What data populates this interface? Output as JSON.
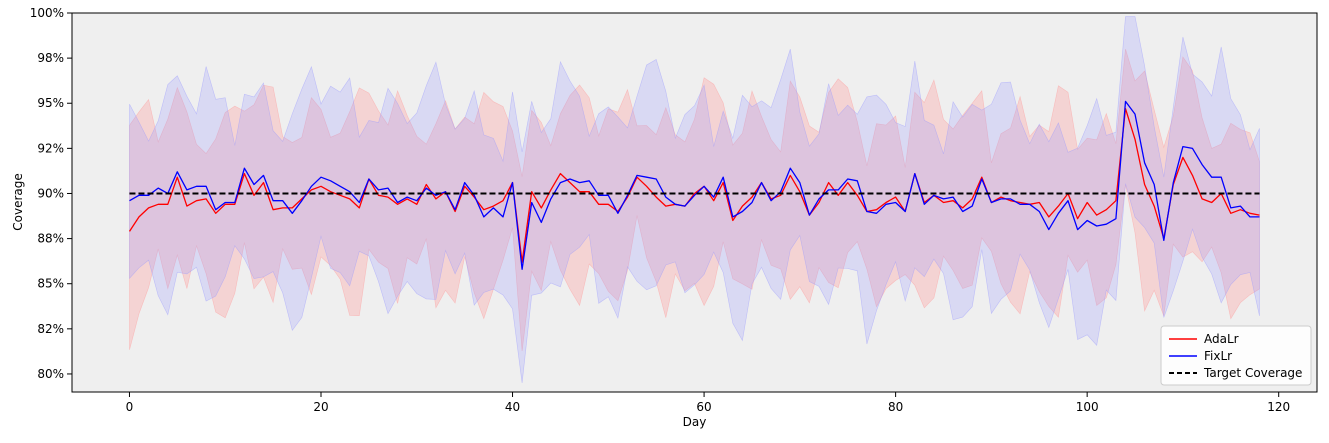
{
  "chart_data": {
    "type": "line",
    "xlabel": "Day",
    "ylabel": "Coverage",
    "xlim": [
      -6,
      124
    ],
    "ylim": [
      0.79,
      1.0
    ],
    "x_ticks": [
      0,
      20,
      40,
      60,
      80,
      100,
      120
    ],
    "x_tick_labels": [
      "0",
      "20",
      "40",
      "60",
      "80",
      "100",
      "120"
    ],
    "y_ticks": [
      0.8,
      0.825,
      0.85,
      0.875,
      0.9,
      0.925,
      0.95,
      0.975,
      1.0
    ],
    "y_tick_labels": [
      "80%",
      "82%",
      "85%",
      "88%",
      "90%",
      "92%",
      "95%",
      "98%",
      "100%"
    ],
    "target": 0.9,
    "legend_position": "lower-right",
    "legend": [
      "AdaLr",
      "FixLr",
      "Target Coverage"
    ],
    "colors": {
      "adalr": "#ff0000",
      "fixlr": "#0000ff",
      "target": "#000000",
      "background": "#efefef",
      "adalr_band": "#ff9999",
      "fixlr_band": "#9999ff"
    },
    "x": [
      0,
      1,
      2,
      3,
      4,
      5,
      6,
      7,
      8,
      9,
      10,
      11,
      12,
      13,
      14,
      15,
      16,
      17,
      18,
      19,
      20,
      21,
      22,
      23,
      24,
      25,
      26,
      27,
      28,
      29,
      30,
      31,
      32,
      33,
      34,
      35,
      36,
      37,
      38,
      39,
      40,
      41,
      42,
      43,
      44,
      45,
      46,
      47,
      48,
      49,
      50,
      51,
      52,
      53,
      54,
      55,
      56,
      57,
      58,
      59,
      60,
      61,
      62,
      63,
      64,
      65,
      66,
      67,
      68,
      69,
      70,
      71,
      72,
      73,
      74,
      75,
      76,
      77,
      78,
      79,
      80,
      81,
      82,
      83,
      84,
      85,
      86,
      87,
      88,
      89,
      90,
      91,
      92,
      93,
      94,
      95,
      96,
      97,
      98,
      99,
      100,
      101,
      102,
      103,
      104,
      105,
      106,
      107,
      108,
      109,
      110,
      111,
      112,
      113,
      114,
      115,
      116,
      117,
      118
    ],
    "series": [
      {
        "name": "AdaLr",
        "values": [
          0.879,
          0.887,
          0.892,
          0.894,
          0.894,
          0.909,
          0.893,
          0.896,
          0.897,
          0.889,
          0.894,
          0.894,
          0.911,
          0.899,
          0.906,
          0.891,
          0.892,
          0.892,
          0.897,
          0.902,
          0.904,
          0.901,
          0.899,
          0.897,
          0.892,
          0.908,
          0.899,
          0.898,
          0.894,
          0.897,
          0.894,
          0.905,
          0.897,
          0.901,
          0.89,
          0.904,
          0.898,
          0.891,
          0.893,
          0.896,
          0.906,
          0.862,
          0.901,
          0.892,
          0.902,
          0.911,
          0.906,
          0.901,
          0.901,
          0.894,
          0.894,
          0.89,
          0.898,
          0.909,
          0.904,
          0.898,
          0.893,
          0.894,
          0.893,
          0.9,
          0.904,
          0.896,
          0.906,
          0.885,
          0.893,
          0.898,
          0.906,
          0.897,
          0.899,
          0.91,
          0.901,
          0.888,
          0.895,
          0.906,
          0.899,
          0.906,
          0.899,
          0.89,
          0.891,
          0.895,
          0.898,
          0.89,
          0.911,
          0.895,
          0.899,
          0.895,
          0.896,
          0.892,
          0.897,
          0.909,
          0.895,
          0.898,
          0.896,
          0.895,
          0.894,
          0.895,
          0.887,
          0.893,
          0.9,
          0.886,
          0.895,
          0.888,
          0.891,
          0.896,
          0.947,
          0.93,
          0.905,
          0.893,
          0.875,
          0.905,
          0.92,
          0.91,
          0.897,
          0.895,
          0.9,
          0.889,
          0.891,
          0.889,
          0.888
        ]
      },
      {
        "name": "FixLr",
        "values": [
          0.896,
          0.899,
          0.899,
          0.903,
          0.9,
          0.912,
          0.902,
          0.904,
          0.904,
          0.891,
          0.895,
          0.895,
          0.914,
          0.905,
          0.91,
          0.896,
          0.896,
          0.889,
          0.896,
          0.904,
          0.909,
          0.907,
          0.904,
          0.901,
          0.895,
          0.908,
          0.902,
          0.903,
          0.895,
          0.898,
          0.896,
          0.903,
          0.899,
          0.901,
          0.891,
          0.906,
          0.899,
          0.887,
          0.892,
          0.887,
          0.906,
          0.858,
          0.895,
          0.884,
          0.897,
          0.906,
          0.908,
          0.906,
          0.907,
          0.899,
          0.899,
          0.889,
          0.899,
          0.91,
          0.909,
          0.908,
          0.898,
          0.894,
          0.893,
          0.899,
          0.904,
          0.898,
          0.909,
          0.887,
          0.89,
          0.895,
          0.906,
          0.896,
          0.901,
          0.914,
          0.906,
          0.888,
          0.897,
          0.902,
          0.902,
          0.908,
          0.907,
          0.89,
          0.889,
          0.894,
          0.895,
          0.89,
          0.911,
          0.894,
          0.899,
          0.897,
          0.898,
          0.89,
          0.893,
          0.908,
          0.895,
          0.897,
          0.897,
          0.894,
          0.894,
          0.89,
          0.88,
          0.889,
          0.896,
          0.88,
          0.885,
          0.882,
          0.883,
          0.886,
          0.951,
          0.944,
          0.917,
          0.905,
          0.874,
          0.906,
          0.926,
          0.925,
          0.916,
          0.909,
          0.909,
          0.892,
          0.893,
          0.887,
          0.887
        ]
      }
    ]
  }
}
